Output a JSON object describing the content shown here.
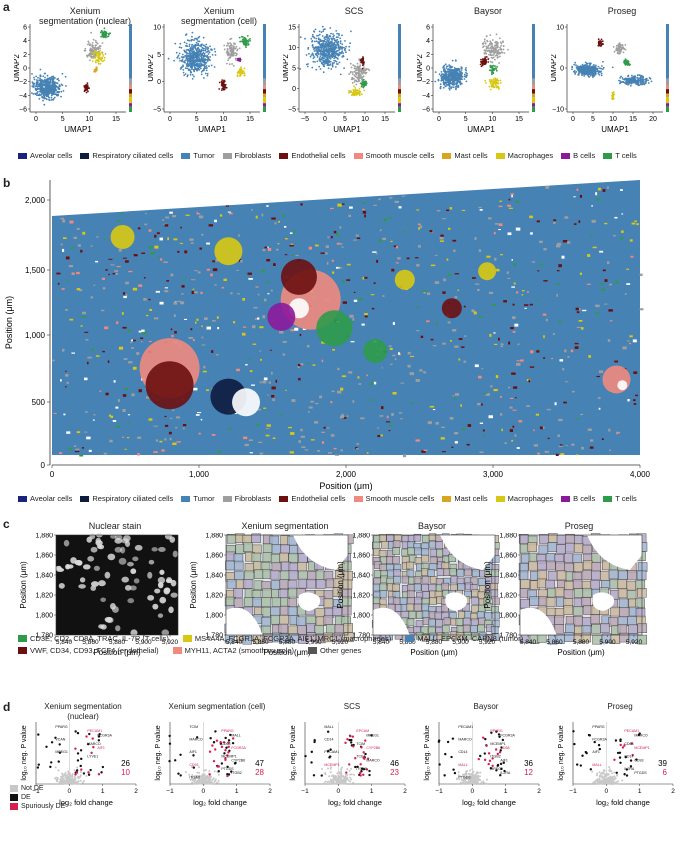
{
  "panels": {
    "a": "a",
    "b": "b",
    "c": "c",
    "d": "d"
  },
  "panel_a": {
    "methods": [
      {
        "title_l1": "Xenium",
        "title_l2": "segmentation (nuclear)",
        "yticks": [
          "6",
          "4",
          "2",
          "0",
          "−2",
          "−4",
          "−6"
        ],
        "xticks": [
          "0",
          "5",
          "10",
          "15"
        ]
      },
      {
        "title_l1": "Xenium",
        "title_l2": "segmentation (cell)",
        "yticks": [
          "10",
          "5",
          "0",
          "−5"
        ],
        "xticks": [
          "0",
          "5",
          "10",
          "15"
        ]
      },
      {
        "title_l1": "SCS",
        "title_l2": "",
        "yticks": [
          "15",
          "10",
          "5",
          "0",
          "−5"
        ],
        "xticks": [
          "−5",
          "0",
          "5",
          "10",
          "15"
        ]
      },
      {
        "title_l1": "Baysor",
        "title_l2": "",
        "yticks": [
          "6",
          "4",
          "2",
          "0",
          "−2",
          "−4",
          "−6"
        ],
        "xticks": [
          "0",
          "5",
          "10",
          "15"
        ]
      },
      {
        "title_l1": "Proseg",
        "title_l2": "",
        "yticks": [
          "10",
          "0",
          "−10"
        ],
        "xticks": [
          "0",
          "5",
          "10",
          "15",
          "20"
        ]
      }
    ],
    "xlabel": "UMAP1",
    "ylabel": "UMAP2"
  },
  "cell_types": [
    {
      "name": "Aveolar cells",
      "color": "#1a237e"
    },
    {
      "name": "Respiratory ciliated cells",
      "color": "#0d1b3e"
    },
    {
      "name": "Tumor",
      "color": "#4682b4"
    },
    {
      "name": "Fibroblasts",
      "color": "#9e9e9e"
    },
    {
      "name": "Endothelial cells",
      "color": "#6b0f0f"
    },
    {
      "name": "Smooth muscle cells",
      "color": "#f08a7e"
    },
    {
      "name": "Mast cells",
      "color": "#d9a521"
    },
    {
      "name": "Macrophages",
      "color": "#d8c813"
    },
    {
      "name": "B cells",
      "color": "#8b1a9b"
    },
    {
      "name": "T cells",
      "color": "#2e9b4a"
    }
  ],
  "panel_b": {
    "xlabel": "Position (μm)",
    "ylabel": "Position (μm)",
    "xticks": [
      "0",
      "1,000",
      "2,000",
      "3,000",
      "4,000"
    ],
    "yticks": [
      "2,000",
      "1,500",
      "1,000",
      "500",
      "0"
    ]
  },
  "panel_c": {
    "titles": [
      "Nuclear stain",
      "Xenium segmentation",
      "Baysor",
      "Proseg"
    ],
    "yticks": [
      "1,880",
      "1,860",
      "1,840",
      "1,820",
      "1,800",
      "1,780"
    ],
    "xticks": [
      "5,840",
      "5,860",
      "5,880",
      "5,900",
      "5,920"
    ],
    "xlabel": "Position (μm)",
    "ylabel": "Position (μm)",
    "gene_legend": [
      {
        "label": "CD3E, CD2, CD8A, TRAC, IL-7R (T cells)",
        "color": "#2e9b4a"
      },
      {
        "label": "MS4A4A, FCGR1A, FCGR3A, AIF1, MRC1 (macrophages)",
        "color": "#d8c813"
      },
      {
        "label": "MALL, EPCAM, CAPN8 (tumor)",
        "color": "#4682b4"
      },
      {
        "label": "VWF, CD34, CD93, TCF4 (endothelial)",
        "color": "#6b0f0f"
      },
      {
        "label": "MYH11, ACTA2 (smooth muscle)",
        "color": "#f08a7e"
      },
      {
        "label": "Other genes",
        "color": "#555555"
      }
    ]
  },
  "panel_d": {
    "plots": [
      {
        "title_l1": "Xenium segmentation",
        "title_l2": "(nuclear)",
        "de": "26",
        "sde": "10",
        "xticks": [
          "−1",
          "0",
          "1",
          "2"
        ]
      },
      {
        "title_l1": "Xenium segmentation (cell)",
        "title_l2": "",
        "de": "47",
        "sde": "28",
        "xticks": [
          "−1",
          "0",
          "1",
          "2"
        ]
      },
      {
        "title_l1": "SCS",
        "title_l2": "",
        "de": "46",
        "sde": "23",
        "xticks": [
          "−1",
          "0",
          "1",
          "2"
        ]
      },
      {
        "title_l1": "Baysor",
        "title_l2": "",
        "de": "36",
        "sde": "12",
        "xticks": [
          "−1",
          "0",
          "1",
          "2"
        ]
      },
      {
        "title_l1": "Proseg",
        "title_l2": "",
        "de": "39",
        "sde": "6",
        "xticks": [
          "−1",
          "0",
          "1",
          "2"
        ]
      }
    ],
    "xlabel": "log₂ fold change",
    "ylabel": "log₁₀ neg. P value",
    "legend": [
      {
        "label": "Not DE",
        "color": "#c8c8c8"
      },
      {
        "label": "DE",
        "color": "#111111"
      },
      {
        "label": "Spuriously DE",
        "color": "#d6204e"
      }
    ],
    "gene_labels": {
      "p0": [
        "PPARG",
        "PECAM1",
        "FCGR3A",
        "VCAN",
        "MARCO",
        "AIF1",
        "MPEG1",
        "LYVE1"
      ],
      "p1": [
        "TCIM",
        "PPARG",
        "MALL",
        "MARCO",
        "CD68",
        "FCGR3A",
        "AIF1",
        "MCEMP1",
        "CYP2B6",
        "CD93",
        "PTGDS",
        "ITGB2",
        "ITGAX"
      ],
      "p2": [
        "MALL",
        "EPCAM",
        "MPEG1",
        "CD14",
        "TCIM",
        "CYP2B6",
        "PECAM1",
        "TCF4",
        "MARCO",
        "MCEMP1",
        "ITGB8"
      ],
      "p3": [
        "PECAM1",
        "PPARG",
        "FCGR3A",
        "MARCO",
        "MCEMP1",
        "CD68",
        "CD14",
        "ITGB2",
        "AIF1",
        "MALL",
        "MPEG1",
        "IL2RA",
        "PTGDS"
      ],
      "p4": [
        "PPARG",
        "PECAM1",
        "MARCO",
        "FCGR3A",
        "CD68",
        "MCEMP1",
        "AIF1",
        "CD14",
        "CD93",
        "MALL",
        "IL2RA",
        "PTGDS"
      ]
    }
  }
}
